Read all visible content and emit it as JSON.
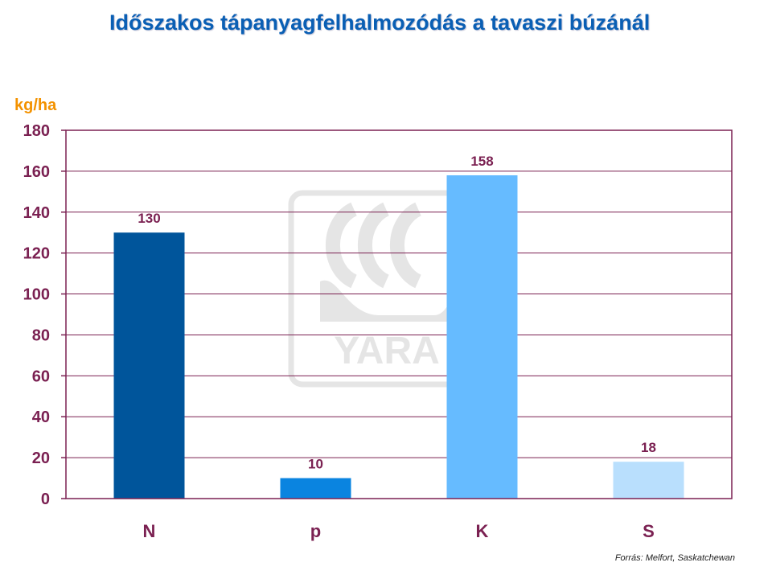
{
  "title": "Időszakos tápanyagfelhalmozódás a tavaszi búzánál",
  "source": "Forrás: Melfort, Saskatchewan",
  "watermark": "YARA",
  "chart_data": {
    "type": "bar",
    "categories": [
      "N",
      "p",
      "K",
      "S"
    ],
    "values": [
      130,
      10,
      158,
      18
    ],
    "colors": [
      "#00559b",
      "#0a84e0",
      "#66bbff",
      "#b9dffd"
    ],
    "ylabel": "kg/ha",
    "ylim": [
      0,
      180
    ],
    "yticks": [
      0,
      20,
      40,
      60,
      80,
      100,
      120,
      140,
      160,
      180
    ],
    "grid": true,
    "axis_color": "#7b2152"
  }
}
